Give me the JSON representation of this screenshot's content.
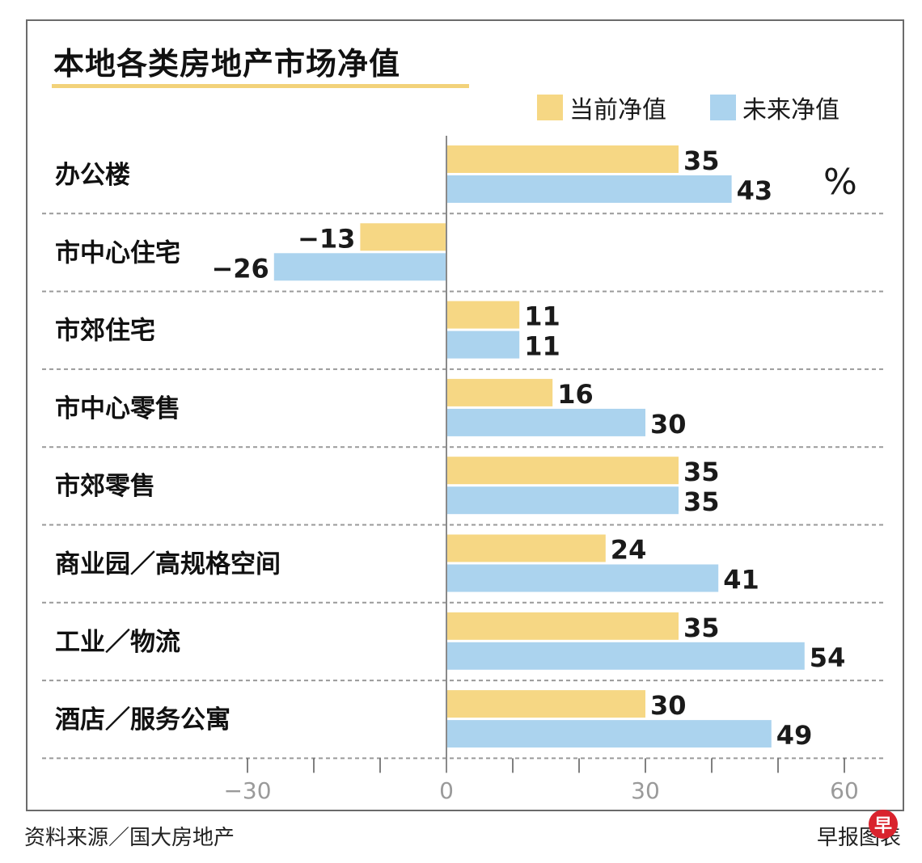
{
  "chart_data": {
    "type": "bar",
    "orientation": "horizontal",
    "title": "本地各类房地产市场净值",
    "unit": "%",
    "categories": [
      "办公楼",
      "市中心住宅",
      "市郊住宅",
      "市中心零售",
      "市郊零售",
      "商业园／高规格空间",
      "工业／物流",
      "酒店／服务公寓"
    ],
    "series": [
      {
        "name": "当前净值",
        "color": "#f6d784",
        "values": [
          35,
          -13,
          11,
          16,
          35,
          24,
          35,
          30
        ],
        "labels": [
          "35",
          "−13",
          "11",
          "16",
          "35",
          "24",
          "35",
          "30"
        ]
      },
      {
        "name": "未来净值",
        "color": "#abd3ee",
        "values": [
          43,
          -26,
          11,
          30,
          35,
          41,
          54,
          49
        ],
        "labels": [
          "43",
          "−26",
          "11",
          "30",
          "35",
          "41",
          "54",
          "49"
        ]
      }
    ],
    "xlim": [
      -30,
      60
    ],
    "x_ticks": [
      -30,
      0,
      30,
      60
    ],
    "x_tick_labels": [
      "−30",
      "0",
      "30",
      "60"
    ],
    "legend_position": "top-right",
    "grid": false
  },
  "source_text": "资料来源／国大房地产",
  "credit_text": "早报图表",
  "credit_logo": "早"
}
